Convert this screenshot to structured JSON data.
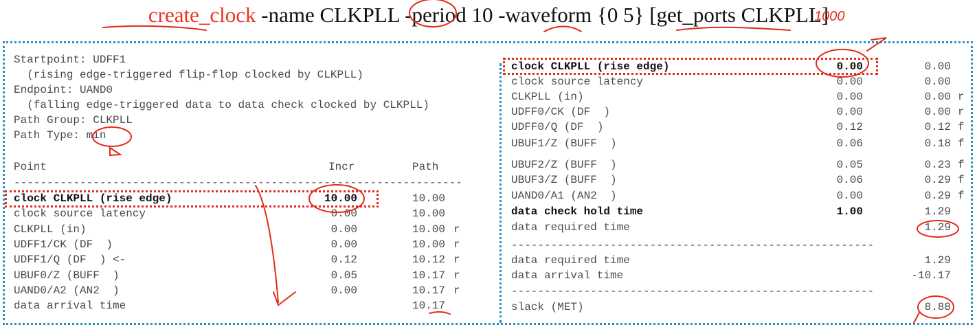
{
  "command": {
    "keyword": "create_clock",
    "rest": " -name CLKPLL -period 10 -waveform {0 5} [get_ports CLKPLL]"
  },
  "handwritten_note": "1000",
  "left": {
    "header_lines": [
      "Startpoint: UDFF1",
      "  (rising edge-triggered flip-flop clocked by CLKPLL)",
      "Endpoint: UAND0",
      "  (falling edge-triggered data to data check clocked by CLKPLL)",
      "Path Group: CLKPLL",
      "Path Type: min"
    ],
    "col_headers": {
      "point": "Point",
      "incr": "Incr",
      "path": "Path"
    },
    "separator": "--------------------------------------------------------------------",
    "rows": [
      {
        "point": "clock CLKPLL (rise edge)",
        "incr": "10.00",
        "path": "10.00",
        "flag": "",
        "bold": true
      },
      {
        "point": "clock source latency",
        "incr": "0.00",
        "path": "10.00",
        "flag": ""
      },
      {
        "point": "CLKPLL (in)",
        "incr": "0.00",
        "path": "10.00",
        "flag": "r"
      },
      {
        "point": "UDFF1/CK (DF  )",
        "incr": "0.00",
        "path": "10.00",
        "flag": "r"
      },
      {
        "point": "UDFF1/Q (DF  ) <-",
        "incr": "0.12",
        "path": "10.12",
        "flag": "r"
      },
      {
        "point": "UBUF0/Z (BUFF  )",
        "incr": "0.05",
        "path": "10.17",
        "flag": "r"
      },
      {
        "point": "UAND0/A2 (AN2  )",
        "incr": "0.00",
        "path": "10.17",
        "flag": "r"
      },
      {
        "point": "data arrival time",
        "incr": "",
        "path": "10.17",
        "flag": ""
      }
    ]
  },
  "right": {
    "rows": [
      {
        "point": "clock CLKPLL (rise edge)",
        "incr": "0.00",
        "path": "0.00",
        "flag": "",
        "bold": true
      },
      {
        "point": "clock source latency",
        "incr": "0.00",
        "path": "0.00",
        "flag": ""
      },
      {
        "point": "CLKPLL (in)",
        "incr": "0.00",
        "path": "0.00",
        "flag": "r"
      },
      {
        "point": "UDFF0/CK (DF  )",
        "incr": "0.00",
        "path": "0.00",
        "flag": "r"
      },
      {
        "point": "UDFF0/Q (DF  )",
        "incr": "0.12",
        "path": "0.12",
        "flag": "f"
      },
      {
        "point": "UBUF1/Z (BUFF  )",
        "incr": "0.06",
        "path": "0.18",
        "flag": "f"
      },
      {
        "point": "UBUF2/Z (BUFF  )",
        "incr": "0.05",
        "path": "0.23",
        "flag": "f"
      },
      {
        "point": "UBUF3/Z (BUFF  )",
        "incr": "0.06",
        "path": "0.29",
        "flag": "f"
      },
      {
        "point": "UAND0/A1 (AN2  )",
        "incr": "0.00",
        "path": "0.29",
        "flag": "f"
      },
      {
        "point": "data check hold time",
        "incr": "1.00",
        "path": "1.29",
        "flag": "",
        "bold": true
      },
      {
        "point": "data required time",
        "incr": "",
        "path": "1.29",
        "flag": ""
      }
    ],
    "separator": "-------------------------------------------------------",
    "summary": [
      {
        "point": "data required time",
        "path": "1.29"
      },
      {
        "point": "data arrival time",
        "path": "-10.17"
      }
    ],
    "slack": {
      "point": "slack (MET)",
      "path": "8.88"
    }
  },
  "colors": {
    "highlight": "#e22b1b",
    "frame": "#2a8ec8",
    "keyword": "#e8341c"
  }
}
